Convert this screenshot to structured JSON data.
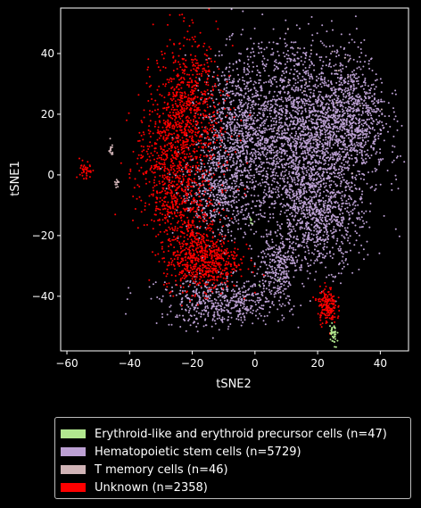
{
  "chart_data": {
    "type": "scatter",
    "title": "",
    "xlabel": "tSNE2",
    "ylabel": "tSNE1",
    "xlim": [
      -62,
      49
    ],
    "ylim": [
      -58,
      55
    ],
    "xticks": [
      -60,
      -40,
      -20,
      0,
      20,
      40
    ],
    "yticks": [
      -40,
      -20,
      0,
      20,
      40
    ],
    "background": "#000000",
    "axis_color": "#ffffff",
    "series": [
      {
        "name": "Erythroid-like and erythroid precursor cells (n=47)",
        "color": "#b2e88f",
        "n": 47,
        "clusters": [
          {
            "cx": 25,
            "cy": -53,
            "sx": 0.6,
            "sy": 2.5,
            "n": 40
          },
          {
            "cx": -1,
            "cy": -15,
            "sx": 0.3,
            "sy": 0.6,
            "n": 5
          },
          {
            "cx": 4,
            "cy": -38,
            "sx": 3,
            "sy": 3,
            "n": 2
          }
        ]
      },
      {
        "name": "Hematopoietic stem cells (n=5729)",
        "color": "#bca0d3",
        "n": 5729,
        "clusters": [
          {
            "cx": 15,
            "cy": 10,
            "sx": 11,
            "sy": 14,
            "n": 2100
          },
          {
            "cx": 30,
            "cy": 20,
            "sx": 6,
            "sy": 9,
            "n": 700
          },
          {
            "cx": -5,
            "cy": 15,
            "sx": 6,
            "sy": 12,
            "n": 800
          },
          {
            "cx": 20,
            "cy": -15,
            "sx": 7,
            "sy": 8,
            "n": 700
          },
          {
            "cx": -12,
            "cy": -5,
            "sx": 6,
            "sy": 8,
            "n": 500
          },
          {
            "cx": -10,
            "cy": -42,
            "sx": 10,
            "sy": 4,
            "n": 550
          },
          {
            "cx": 7,
            "cy": -30,
            "sx": 3,
            "sy": 5,
            "n": 250
          },
          {
            "cx": 15,
            "cy": 38,
            "sx": 8,
            "sy": 5,
            "n": 129
          }
        ]
      },
      {
        "name": "T memory cells (n=46)",
        "color": "#d0b3b6",
        "n": 46,
        "clusters": [
          {
            "cx": -46,
            "cy": 8,
            "sx": 0.5,
            "sy": 1.2,
            "n": 14
          },
          {
            "cx": -44,
            "cy": -3,
            "sx": 0.4,
            "sy": 0.8,
            "n": 12
          },
          {
            "cx": 18,
            "cy": 28,
            "sx": 14,
            "sy": 14,
            "n": 20
          }
        ]
      },
      {
        "name": "Unknown (n=2358)",
        "color": "#ff0000",
        "n": 2358,
        "clusters": [
          {
            "cx": -22,
            "cy": 22,
            "sx": 5,
            "sy": 12,
            "n": 700
          },
          {
            "cx": -28,
            "cy": 2,
            "sx": 5,
            "sy": 10,
            "n": 450
          },
          {
            "cx": -17,
            "cy": -28,
            "sx": 6,
            "sy": 5,
            "n": 650
          },
          {
            "cx": -22,
            "cy": -12,
            "sx": 5,
            "sy": 6,
            "n": 250
          },
          {
            "cx": 23,
            "cy": -43,
            "sx": 1.5,
            "sy": 3,
            "n": 170
          },
          {
            "cx": -54,
            "cy": 1,
            "sx": 1,
            "sy": 2,
            "n": 40
          },
          {
            "cx": -12,
            "cy": 10,
            "sx": 6,
            "sy": 12,
            "n": 98
          }
        ]
      }
    ],
    "legend": {
      "placement": "bottom",
      "entries": [
        {
          "label": "Erythroid-like and erythroid precursor cells (n=47)",
          "color": "#b2e88f"
        },
        {
          "label": "Hematopoietic stem cells (n=5729)",
          "color": "#bca0d3"
        },
        {
          "label": "T memory cells (n=46)",
          "color": "#d0b3b6"
        },
        {
          "label": "Unknown (n=2358)",
          "color": "#ff0000"
        }
      ]
    },
    "grid": false
  }
}
